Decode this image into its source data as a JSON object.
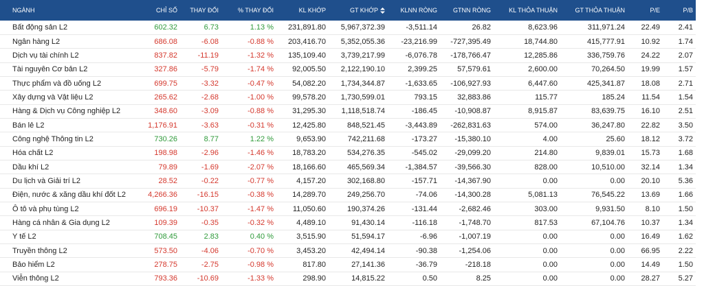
{
  "table": {
    "header": [
      "NGÀNH",
      "CHỈ SỐ",
      "THAY ĐỔI",
      "% THAY ĐỔI",
      "KL KHỚP",
      "GT KHỚP",
      "KLNN RÒNG",
      "GTNN RÒNG",
      "KL THỎA THUẬN",
      "GT THỎA THUẬN",
      "P/E",
      "P/B"
    ],
    "rows": [
      [
        "Bất động sản L2",
        "602.32",
        "6.73",
        "1.13 %",
        "231,891.80",
        "5,967,372.39",
        "-3,511.14",
        "26.82",
        "8,623.96",
        "311,971.24",
        "22.49",
        "2.41"
      ],
      [
        "Ngân hàng L2",
        "686.08",
        "-6.08",
        "-0.88 %",
        "203,416.70",
        "5,352,055.36",
        "-23,216.99",
        "-727,395.49",
        "18,744.80",
        "415,777.91",
        "10.92",
        "1.74"
      ],
      [
        "Dịch vụ tài chính L2",
        "837.82",
        "-11.19",
        "-1.32 %",
        "135,109.40",
        "3,739,217.99",
        "-6,076.78",
        "-178,766.47",
        "12,285.86",
        "336,759.76",
        "24.22",
        "2.07"
      ],
      [
        "Tài nguyên Cơ bản L2",
        "327.86",
        "-5.79",
        "-1.74 %",
        "92,005.50",
        "2,122,190.10",
        "2,399.25",
        "57,579.61",
        "2,600.00",
        "70,264.50",
        "19.99",
        "1.57"
      ],
      [
        "Thực phẩm và đồ uống L2",
        "699.75",
        "-3.32",
        "-0.47 %",
        "54,082.20",
        "1,734,344.87",
        "-1,633.65",
        "-106,927.93",
        "6,447.60",
        "425,341.87",
        "18.08",
        "2.71"
      ],
      [
        "Xây dựng và Vật liệu L2",
        "265.62",
        "-2.68",
        "-1.00 %",
        "99,578.20",
        "1,730,599.01",
        "793.15",
        "32,883.86",
        "115.77",
        "185.24",
        "11.54",
        "1.54"
      ],
      [
        "Hàng & Dịch vụ Công nghiệp L2",
        "348.60",
        "-3.09",
        "-0.88 %",
        "31,295.30",
        "1,118,518.74",
        "-186.45",
        "-10,908.87",
        "8,915.87",
        "83,639.75",
        "16.10",
        "2.51"
      ],
      [
        "Bán lẻ L2",
        "1,176.91",
        "-3.63",
        "-0.31 %",
        "12,425.80",
        "848,521.45",
        "-3,443.89",
        "-262,831.63",
        "574.00",
        "36,247.80",
        "22.82",
        "3.50"
      ],
      [
        "Công nghệ Thông tin L2",
        "730.26",
        "8.77",
        "1.22 %",
        "9,653.90",
        "742,211.68",
        "-173.27",
        "-15,380.10",
        "4.00",
        "25.60",
        "18.12",
        "3.72"
      ],
      [
        "Hóa chất L2",
        "198.98",
        "-2.96",
        "-1.46 %",
        "18,783.20",
        "534,276.35",
        "-545.02",
        "-29,099.20",
        "214.80",
        "9,839.01",
        "15.73",
        "1.68"
      ],
      [
        "Dầu khí L2",
        "79.89",
        "-1.69",
        "-2.07 %",
        "18,166.60",
        "465,569.34",
        "-1,384.57",
        "-39,566.30",
        "828.00",
        "10,510.00",
        "32.14",
        "1.34"
      ],
      [
        "Du lịch và Giải trí L2",
        "28.52",
        "-0.22",
        "-0.77 %",
        "4,157.20",
        "302,168.80",
        "-157.71",
        "-14,367.90",
        "0.00",
        "0.00",
        "20.10",
        "5.36"
      ],
      [
        "Điện, nước & xăng dầu khí đốt L2",
        "4,266.36",
        "-16.15",
        "-0.38 %",
        "14,289.70",
        "249,256.70",
        "-74.06",
        "-14,300.28",
        "5,081.13",
        "76,545.22",
        "13.69",
        "1.66"
      ],
      [
        "Ô tô và phụ tùng L2",
        "696.19",
        "-10.37",
        "-1.47 %",
        "11,050.60",
        "190,374.26",
        "-131.44",
        "-2,682.46",
        "303.00",
        "9,931.50",
        "8.10",
        "1.50"
      ],
      [
        "Hàng cá nhân & Gia dụng L2",
        "109.39",
        "-0.35",
        "-0.32 %",
        "4,489.10",
        "91,430.14",
        "-116.18",
        "-1,748.70",
        "817.53",
        "67,104.76",
        "10.37",
        "1.34"
      ],
      [
        "Y tế L2",
        "708.45",
        "2.83",
        "0.40 %",
        "3,515.90",
        "51,594.17",
        "-6.96",
        "-1,007.19",
        "0.00",
        "0.00",
        "16.49",
        "1.62"
      ],
      [
        "Truyền thông L2",
        "573.50",
        "-4.06",
        "-0.70 %",
        "3,453.20",
        "42,494.14",
        "-90.38",
        "-1,254.06",
        "0.00",
        "0.00",
        "66.95",
        "2.22"
      ],
      [
        "Bảo hiểm L2",
        "278.75",
        "-2.75",
        "-0.98 %",
        "817.80",
        "27,141.36",
        "-36.79",
        "-218.18",
        "0.00",
        "0.00",
        "14.49",
        "1.50"
      ],
      [
        "Viễn thông L2",
        "793.36",
        "-10.69",
        "-1.33 %",
        "298.90",
        "14,815.22",
        "0.50",
        "8.25",
        "0.00",
        "0.00",
        "28.27",
        "5.27"
      ]
    ]
  }
}
